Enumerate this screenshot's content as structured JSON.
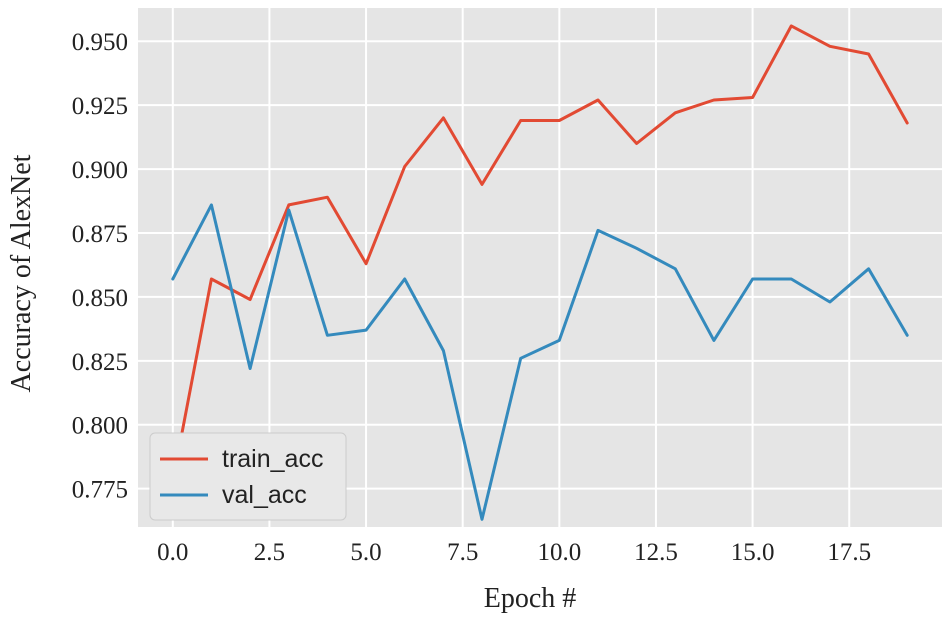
{
  "chart_data": {
    "type": "line",
    "title": "",
    "xlabel": "Epoch #",
    "ylabel": "Accuracy of AlexNet",
    "xlim": [
      -0.9,
      19.9
    ],
    "ylim": [
      0.76,
      0.963
    ],
    "xticks": [
      0.0,
      2.5,
      5.0,
      7.5,
      10.0,
      12.5,
      15.0,
      17.5
    ],
    "xtick_labels": [
      "0.0",
      "2.5",
      "5.0",
      "7.5",
      "10.0",
      "12.5",
      "15.0",
      "17.5"
    ],
    "yticks": [
      0.775,
      0.8,
      0.825,
      0.85,
      0.875,
      0.9,
      0.925,
      0.95
    ],
    "ytick_labels": [
      "0.775",
      "0.800",
      "0.825",
      "0.850",
      "0.875",
      "0.900",
      "0.925",
      "0.950"
    ],
    "grid": true,
    "legend_position": "lower-left",
    "x": [
      0,
      1,
      2,
      3,
      4,
      5,
      6,
      7,
      8,
      9,
      10,
      11,
      12,
      13,
      14,
      15,
      16,
      17,
      18,
      19
    ],
    "series": [
      {
        "name": "train_acc",
        "color": "#e24a33",
        "values": [
          0.778,
          0.857,
          0.849,
          0.886,
          0.889,
          0.863,
          0.901,
          0.92,
          0.894,
          0.919,
          0.919,
          0.927,
          0.91,
          0.922,
          0.927,
          0.928,
          0.956,
          0.948,
          0.945,
          0.918
        ]
      },
      {
        "name": "val_acc",
        "color": "#348abd",
        "values": [
          0.857,
          0.886,
          0.822,
          0.884,
          0.835,
          0.837,
          0.857,
          0.829,
          0.763,
          0.826,
          0.833,
          0.876,
          0.869,
          0.861,
          0.833,
          0.857,
          0.857,
          0.848,
          0.861,
          0.835
        ]
      }
    ],
    "colors": {
      "plot_background": "#e5e5e5",
      "grid": "#ffffff"
    }
  }
}
